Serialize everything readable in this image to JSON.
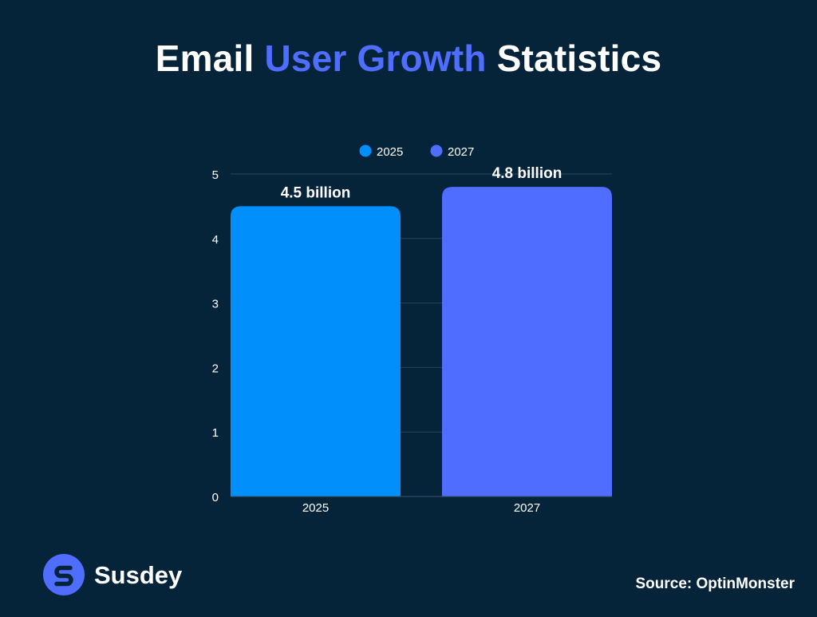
{
  "header": {
    "title_part1": "Email",
    "title_accent": "User Growth",
    "title_part2": "Statistics",
    "accent_color": "#4f6dff"
  },
  "chart_data": {
    "type": "bar",
    "title": "Email User Growth Statistics",
    "categories": [
      "2025",
      "2027"
    ],
    "values": [
      4.5,
      4.8
    ],
    "data_labels": [
      "4.5 billion",
      "4.8 billion"
    ],
    "colors": [
      "#008ffb",
      "#4f6dff"
    ],
    "legend": [
      "2025",
      "2027"
    ],
    "legend_position": "top-center",
    "ylim": [
      0,
      5
    ],
    "yticks": [
      0,
      1,
      2,
      3,
      4,
      5
    ],
    "xlabel": "",
    "ylabel": "",
    "grid": true
  },
  "footer": {
    "brand_name": "Susdey",
    "brand_icon": "susdey-logo-icon",
    "brand_color": "#4f6dff",
    "source": "Source: OptinMonster"
  }
}
